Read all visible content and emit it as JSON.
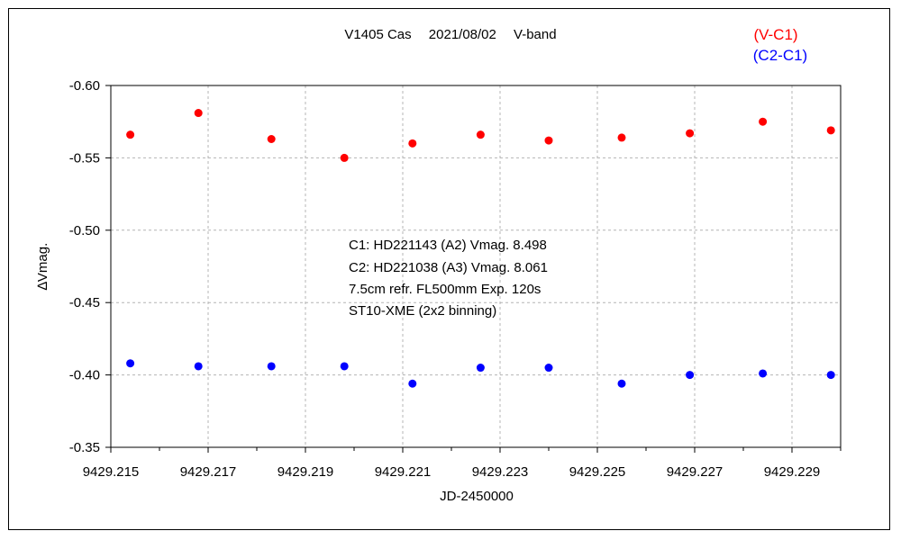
{
  "chart_data": {
    "type": "scatter",
    "title": "V1405 Cas　 2021/08/02　 V-band",
    "xlabel": "JD-2450000",
    "ylabel": "∆Vmag.",
    "xlim": [
      9429.215,
      9429.23
    ],
    "ylim": [
      -0.6,
      -0.35
    ],
    "y_inverted": true,
    "grid": true,
    "x_ticks": [
      9429.215,
      9429.216,
      9429.217,
      9429.218,
      9429.219,
      9429.22,
      9429.221,
      9429.222,
      9429.223,
      9429.224,
      9429.225,
      9429.226,
      9429.227,
      9429.228,
      9429.229,
      9429.23
    ],
    "x_tick_labels": [
      "9429.215",
      "",
      "9429.217",
      "",
      "9429.219",
      "",
      "9429.221",
      "",
      "9429.223",
      "",
      "9429.225",
      "",
      "9429.227",
      "",
      "9429.229",
      ""
    ],
    "y_ticks": [
      -0.6,
      -0.55,
      -0.5,
      -0.45,
      -0.4,
      -0.35
    ],
    "y_tick_labels": [
      "-0.60",
      "-0.55",
      "-0.50",
      "-0.45",
      "-0.40",
      "-0.35"
    ],
    "legend": [
      {
        "label": "(V-C1)",
        "color": "#ff0000"
      },
      {
        "label": "(C2-C1)",
        "color": "#0000ff"
      }
    ],
    "legend_position": "top-right",
    "annotations": [
      "C1: HD221143 (A2) Vmag. 8.498",
      "C2: HD221038 (A3) Vmag. 8.061",
      "7.5cm refr. FL500mm Exp. 120s",
      "ST10-XME (2x2 binning)"
    ],
    "series": [
      {
        "name": "(V-C1)",
        "color": "#ff0000",
        "x": [
          9429.2154,
          9429.2168,
          9429.2183,
          9429.2198,
          9429.2212,
          9429.2226,
          9429.224,
          9429.2255,
          9429.2269,
          9429.2284,
          9429.2298
        ],
        "y": [
          -0.566,
          -0.581,
          -0.563,
          -0.55,
          -0.56,
          -0.566,
          -0.562,
          -0.564,
          -0.567,
          -0.575,
          -0.569
        ]
      },
      {
        "name": "(C2-C1)",
        "color": "#0000ff",
        "x": [
          9429.2154,
          9429.2168,
          9429.2183,
          9429.2198,
          9429.2212,
          9429.2226,
          9429.224,
          9429.2255,
          9429.2269,
          9429.2284,
          9429.2298
        ],
        "y": [
          -0.408,
          -0.406,
          -0.406,
          -0.406,
          -0.394,
          -0.405,
          -0.405,
          -0.394,
          -0.4,
          -0.401,
          -0.4
        ]
      }
    ]
  }
}
